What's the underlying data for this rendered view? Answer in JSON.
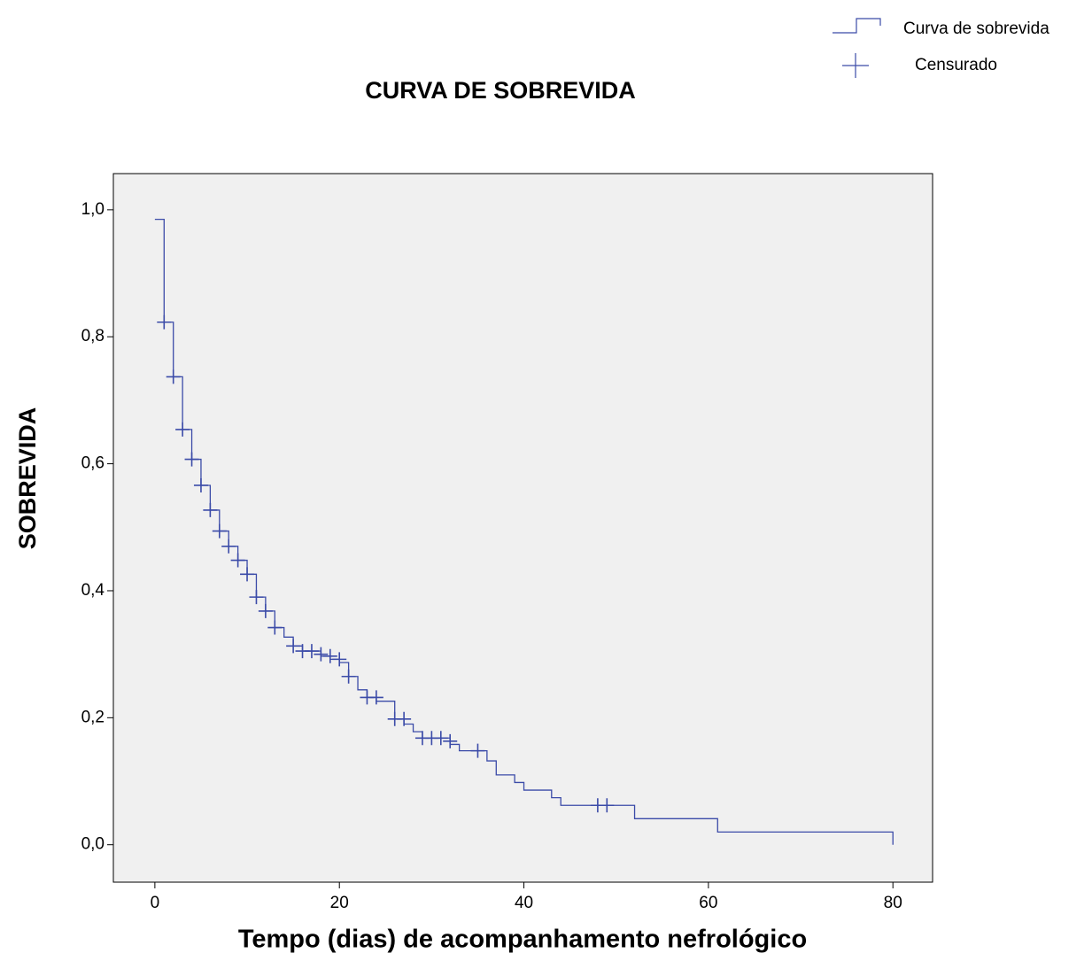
{
  "chart_data": {
    "type": "step",
    "title": "CURVA DE SOBREVIDA",
    "xlabel": "Tempo (dias) de acompanhamento nefrológico",
    "ylabel": "SOBREVIDA",
    "xlim": [
      -4.5,
      84.3
    ],
    "ylim": [
      -0.059,
      1.057
    ],
    "xticks": [
      0,
      20,
      40,
      60,
      80
    ],
    "yticks": [
      {
        "value": 0,
        "label": "0,0"
      },
      {
        "value": 0.2,
        "label": "0,2"
      },
      {
        "value": 0.4,
        "label": "0,4"
      },
      {
        "value": 0.6,
        "label": "0,6"
      },
      {
        "value": 0.8,
        "label": "0,8"
      },
      {
        "value": 1,
        "label": "1,0"
      }
    ],
    "legend": "top-right",
    "series": [
      {
        "name": "Curva de sobrevida",
        "color": "#3b4ba8",
        "style": "step",
        "x": [
          0,
          1,
          2,
          3,
          4,
          5,
          6,
          7,
          8,
          9,
          10,
          11,
          12,
          13,
          14,
          15,
          16,
          18,
          19,
          20,
          21,
          22,
          23,
          24,
          26,
          27,
          28,
          29,
          32,
          33,
          36,
          37,
          39,
          40,
          43,
          44,
          52,
          61,
          80
        ],
        "values": [
          0.985,
          0.823,
          0.737,
          0.654,
          0.607,
          0.566,
          0.527,
          0.494,
          0.47,
          0.448,
          0.426,
          0.39,
          0.368,
          0.342,
          0.327,
          0.313,
          0.305,
          0.297,
          0.292,
          0.287,
          0.265,
          0.244,
          0.232,
          0.226,
          0.198,
          0.19,
          0.178,
          0.168,
          0.158,
          0.148,
          0.132,
          0.11,
          0.098,
          0.086,
          0.074,
          0.062,
          0.041,
          0.02,
          0
        ]
      },
      {
        "name": "Censurado",
        "color": "#3b4ba8",
        "style": "plus",
        "x": [
          1,
          2,
          3,
          4,
          5,
          6,
          7,
          8,
          9,
          10,
          11,
          12,
          13,
          15,
          16,
          17,
          18,
          19,
          20,
          21,
          23,
          24,
          26,
          27,
          29,
          30,
          31,
          32,
          35,
          48,
          49
        ],
        "values": [
          0.823,
          0.737,
          0.654,
          0.607,
          0.566,
          0.527,
          0.494,
          0.47,
          0.448,
          0.426,
          0.39,
          0.368,
          0.342,
          0.313,
          0.305,
          0.305,
          0.3,
          0.297,
          0.292,
          0.265,
          0.232,
          0.232,
          0.198,
          0.198,
          0.168,
          0.168,
          0.168,
          0.163,
          0.148,
          0.062,
          0.062
        ]
      }
    ]
  }
}
